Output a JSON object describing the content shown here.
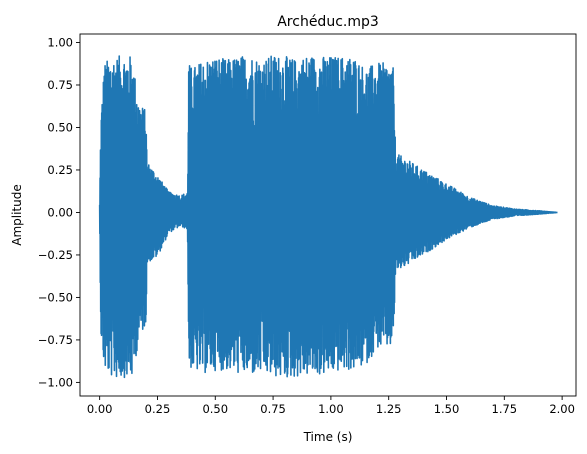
{
  "chart_data": {
    "type": "line",
    "title": "Archéduc.mp3",
    "xlabel": "Time (s)",
    "ylabel": "Amplitude",
    "xlim": [
      -0.085,
      2.06
    ],
    "ylim": [
      -1.08,
      1.05
    ],
    "xticks": [
      0.0,
      0.25,
      0.5,
      0.75,
      1.0,
      1.25,
      1.5,
      1.75,
      2.0
    ],
    "xtick_labels": [
      "0.00",
      "0.25",
      "0.50",
      "0.75",
      "1.00",
      "1.25",
      "1.50",
      "1.75",
      "2.00"
    ],
    "yticks": [
      -1.0,
      -0.75,
      -0.5,
      -0.25,
      0.0,
      0.25,
      0.5,
      0.75,
      1.0
    ],
    "ytick_labels": [
      "−1.00",
      "−0.75",
      "−0.50",
      "−0.25",
      "0.00",
      "0.25",
      "0.50",
      "0.75",
      "1.00"
    ],
    "grid": false,
    "series": [
      {
        "color": "#1f77b4",
        "duration_s": 1.98,
        "envelope_times": [
          0.0,
          0.005,
          0.02,
          0.05,
          0.08,
          0.11,
          0.14,
          0.17,
          0.2,
          0.205,
          0.25,
          0.3,
          0.35,
          0.38,
          0.385,
          0.4,
          0.45,
          0.5,
          0.55,
          0.6,
          0.65,
          0.7,
          0.75,
          0.8,
          0.85,
          0.9,
          0.95,
          1.0,
          1.05,
          1.1,
          1.15,
          1.2,
          1.25,
          1.27,
          1.28,
          1.32,
          1.4,
          1.5,
          1.6,
          1.7,
          1.8,
          1.9,
          1.98
        ],
        "envelope_max": [
          0.05,
          0.55,
          0.88,
          0.92,
          0.92,
          0.93,
          0.92,
          0.65,
          0.6,
          0.3,
          0.22,
          0.12,
          0.1,
          0.12,
          0.88,
          0.85,
          0.9,
          0.92,
          0.9,
          0.92,
          0.93,
          0.9,
          0.93,
          0.92,
          0.9,
          0.93,
          0.92,
          0.92,
          0.92,
          0.92,
          0.85,
          0.88,
          0.88,
          0.85,
          0.35,
          0.32,
          0.25,
          0.17,
          0.09,
          0.04,
          0.02,
          0.01,
          0.0
        ],
        "envelope_min": [
          -0.05,
          -0.72,
          -0.93,
          -0.97,
          -0.98,
          -0.97,
          -0.98,
          -0.75,
          -0.66,
          -0.3,
          -0.26,
          -0.12,
          -0.08,
          -0.1,
          -0.9,
          -0.93,
          -0.95,
          -0.93,
          -0.93,
          -0.95,
          -0.96,
          -0.95,
          -0.97,
          -0.98,
          -0.97,
          -0.96,
          -0.96,
          -0.95,
          -0.93,
          -0.93,
          -0.9,
          -0.8,
          -0.8,
          -0.78,
          -0.35,
          -0.32,
          -0.25,
          -0.16,
          -0.09,
          -0.04,
          -0.02,
          -0.01,
          0.0
        ]
      }
    ]
  }
}
